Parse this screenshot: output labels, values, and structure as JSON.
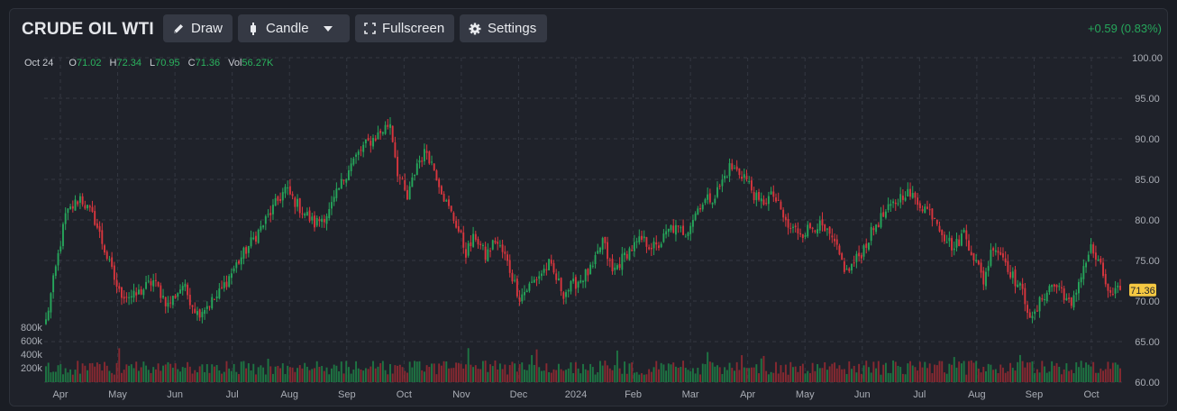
{
  "header": {
    "title": "CRUDE OIL WTI",
    "draw_label": "Draw",
    "candle_label": "Candle",
    "fullscreen_label": "Fullscreen",
    "settings_label": "Settings",
    "change": "+0.59 (0.83%)"
  },
  "ohlc": {
    "date": "Oct 24",
    "o_label": "O",
    "o": "71.02",
    "h_label": "H",
    "h": "72.34",
    "l_label": "L",
    "l": "70.95",
    "c_label": "C",
    "c": "71.36",
    "vol_label": "Vol",
    "vol": "56.27K"
  },
  "icons": {
    "draw": "pencil-icon",
    "candle": "candle-icon",
    "fullscreen": "fullscreen-icon",
    "settings": "gear-icon",
    "caret": "chevron-down-icon"
  },
  "colors": {
    "up": "#26a65b",
    "down": "#d9363e",
    "background": "#1f222a",
    "grid": "#343842",
    "price_tag": "#f5c842"
  },
  "chart_data": {
    "type": "candlestick",
    "title": "CRUDE OIL WTI",
    "last_price_label": "71.36",
    "ylim": [
      60,
      100
    ],
    "yticks": [
      "100.00",
      "95.00",
      "90.00",
      "85.00",
      "80.00",
      "75.00",
      "70.00",
      "65.00",
      "60.00"
    ],
    "volume_ticks": [
      "800k",
      "600k",
      "400k",
      "200k"
    ],
    "volume_max": 800000,
    "xticks": [
      "Apr",
      "May",
      "Jun",
      "Jul",
      "Aug",
      "Sep",
      "Oct",
      "Nov",
      "Dec",
      "2024",
      "Feb",
      "Mar",
      "Apr",
      "May",
      "Jun",
      "Jul",
      "Aug",
      "Sep",
      "Oct"
    ],
    "grid": true,
    "close_anchors": [
      [
        0,
        67.5
      ],
      [
        4,
        74
      ],
      [
        8,
        80.5
      ],
      [
        14,
        82.8
      ],
      [
        20,
        80
      ],
      [
        26,
        74.5
      ],
      [
        30,
        71
      ],
      [
        36,
        70.5
      ],
      [
        44,
        72.5
      ],
      [
        50,
        69.5
      ],
      [
        56,
        72
      ],
      [
        62,
        68.5
      ],
      [
        70,
        70.5
      ],
      [
        78,
        74.5
      ],
      [
        88,
        79
      ],
      [
        98,
        83.8
      ],
      [
        104,
        81.5
      ],
      [
        110,
        79.5
      ],
      [
        116,
        81
      ],
      [
        124,
        86.5
      ],
      [
        130,
        89
      ],
      [
        136,
        90.5
      ],
      [
        141,
        92
      ],
      [
        144,
        86
      ],
      [
        148,
        82.5
      ],
      [
        152,
        87
      ],
      [
        156,
        88.5
      ],
      [
        160,
        85.5
      ],
      [
        164,
        82
      ],
      [
        168,
        79.5
      ],
      [
        172,
        76
      ],
      [
        176,
        78
      ],
      [
        180,
        75.5
      ],
      [
        184,
        77.5
      ],
      [
        188,
        75.5
      ],
      [
        194,
        70.5
      ],
      [
        200,
        72.5
      ],
      [
        206,
        74.5
      ],
      [
        212,
        71
      ],
      [
        218,
        72.5
      ],
      [
        224,
        74
      ],
      [
        228,
        77.5
      ],
      [
        232,
        73.5
      ],
      [
        238,
        76
      ],
      [
        244,
        77.5
      ],
      [
        250,
        76.5
      ],
      [
        256,
        79
      ],
      [
        262,
        78.5
      ],
      [
        268,
        82
      ],
      [
        274,
        83
      ],
      [
        280,
        86.5
      ],
      [
        286,
        85.5
      ],
      [
        292,
        82
      ],
      [
        298,
        83
      ],
      [
        304,
        79
      ],
      [
        310,
        78.5
      ],
      [
        316,
        79.5
      ],
      [
        322,
        77.5
      ],
      [
        328,
        73.5
      ],
      [
        334,
        76
      ],
      [
        340,
        79.5
      ],
      [
        346,
        81.5
      ],
      [
        352,
        83.5
      ],
      [
        358,
        82
      ],
      [
        364,
        80.5
      ],
      [
        368,
        78
      ],
      [
        372,
        76.5
      ],
      [
        376,
        78.5
      ],
      [
        380,
        75.5
      ],
      [
        384,
        72.5
      ],
      [
        388,
        77
      ],
      [
        392,
        75.5
      ],
      [
        396,
        73
      ],
      [
        400,
        71
      ],
      [
        404,
        67.5
      ],
      [
        408,
        70.5
      ],
      [
        412,
        72
      ],
      [
        416,
        71.5
      ],
      [
        420,
        69
      ],
      [
        424,
        73.5
      ],
      [
        428,
        76.5
      ],
      [
        432,
        74
      ],
      [
        436,
        70.5
      ],
      [
        440,
        71.36
      ]
    ],
    "n_candles": 441
  }
}
